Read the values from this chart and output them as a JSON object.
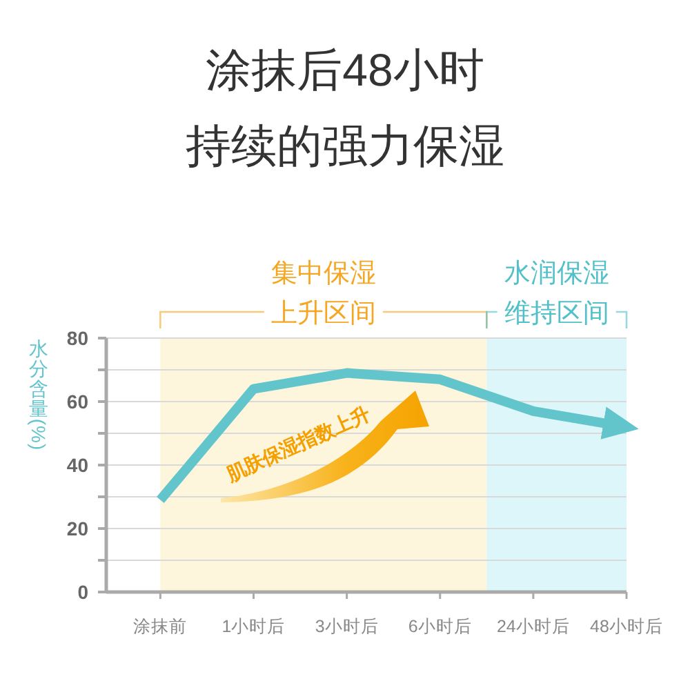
{
  "chart_data": {
    "type": "line",
    "title": "涂抹后48小时持续的强力保湿",
    "ylabel": "水分含量(%)",
    "categories": [
      "涂抹前",
      "1小时后",
      "3小时后",
      "6小时后",
      "24小时后",
      "48小时后"
    ],
    "series": [
      {
        "color": "#63c5cc",
        "values": [
          29,
          64,
          69,
          67,
          57,
          52
        ]
      }
    ],
    "ylim": [
      0,
      80
    ],
    "yticks": [
      0,
      {
        "value": 10,
        "label": null
      },
      20,
      {
        "value": 30,
        "label": null
      },
      40,
      {
        "value": 50,
        "label": null
      },
      60,
      {
        "value": 70,
        "label": null
      },
      80
    ],
    "grid": "y",
    "bands": [
      {
        "axis": "x",
        "from": "涂抹前",
        "to": "6小时后",
        "label": "集中保湿上升区间",
        "color": "#fdf6dc"
      },
      {
        "axis": "x",
        "from": "24小时后",
        "to": "48小时后",
        "label": "水润保湿维持区间",
        "color": "#dcf6fa"
      }
    ],
    "annotations": [
      "肌肤保湿指数上升"
    ]
  }
}
